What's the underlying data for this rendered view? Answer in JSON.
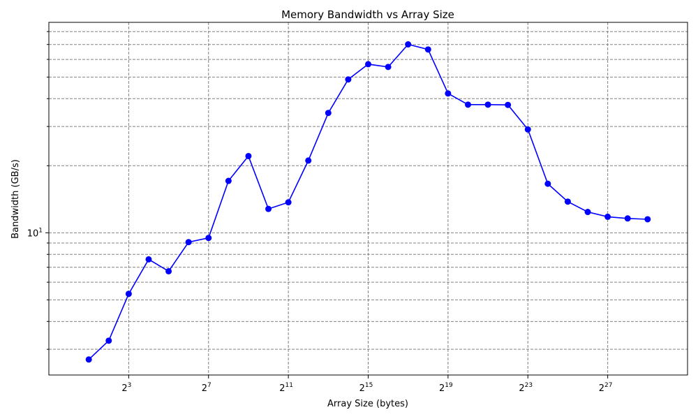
{
  "chart_data": {
    "type": "line",
    "title": "Memory Bandwidth vs Array Size",
    "xlabel": "Array Size (bytes)",
    "ylabel": "Bandwidth (GB/s)",
    "x_scale": "log2",
    "y_scale": "log10",
    "xlim": [
      0.5,
      2147483648
    ],
    "ylim": [
      2.3,
      88
    ],
    "grid": true,
    "x_ticks": [
      {
        "base": "2",
        "exp": "3",
        "value": 8
      },
      {
        "base": "2",
        "exp": "7",
        "value": 128
      },
      {
        "base": "2",
        "exp": "11",
        "value": 2048
      },
      {
        "base": "2",
        "exp": "15",
        "value": 32768
      },
      {
        "base": "2",
        "exp": "19",
        "value": 524288
      },
      {
        "base": "2",
        "exp": "23",
        "value": 8388608
      },
      {
        "base": "2",
        "exp": "27",
        "value": 134217728
      }
    ],
    "y_major_ticks": [
      {
        "base": "10",
        "exp": "1",
        "value": 10
      }
    ],
    "y_minor_ticks": [
      3,
      4,
      5,
      6,
      7,
      8,
      9,
      20,
      30,
      40,
      50,
      60,
      70,
      80
    ],
    "color": "#0000ff",
    "x": [
      2,
      4,
      8,
      16,
      32,
      64,
      128,
      256,
      512,
      1024,
      2048,
      4096,
      8192,
      16384,
      32768,
      65536,
      131072,
      262144,
      524288,
      1048576,
      2097152,
      4194304,
      8388608,
      16777216,
      33554432,
      67108864,
      134217728,
      268435456,
      536870912
    ],
    "y": [
      2.7,
      3.28,
      5.32,
      7.6,
      6.72,
      9.08,
      9.48,
      17.1,
      22.1,
      12.8,
      13.7,
      21.1,
      34.5,
      48.8,
      57.1,
      55.5,
      70.1,
      66.5,
      42.2,
      37.6,
      37.6,
      37.5,
      29.1,
      16.6,
      13.8,
      12.4,
      11.8,
      11.6,
      11.5
    ]
  }
}
